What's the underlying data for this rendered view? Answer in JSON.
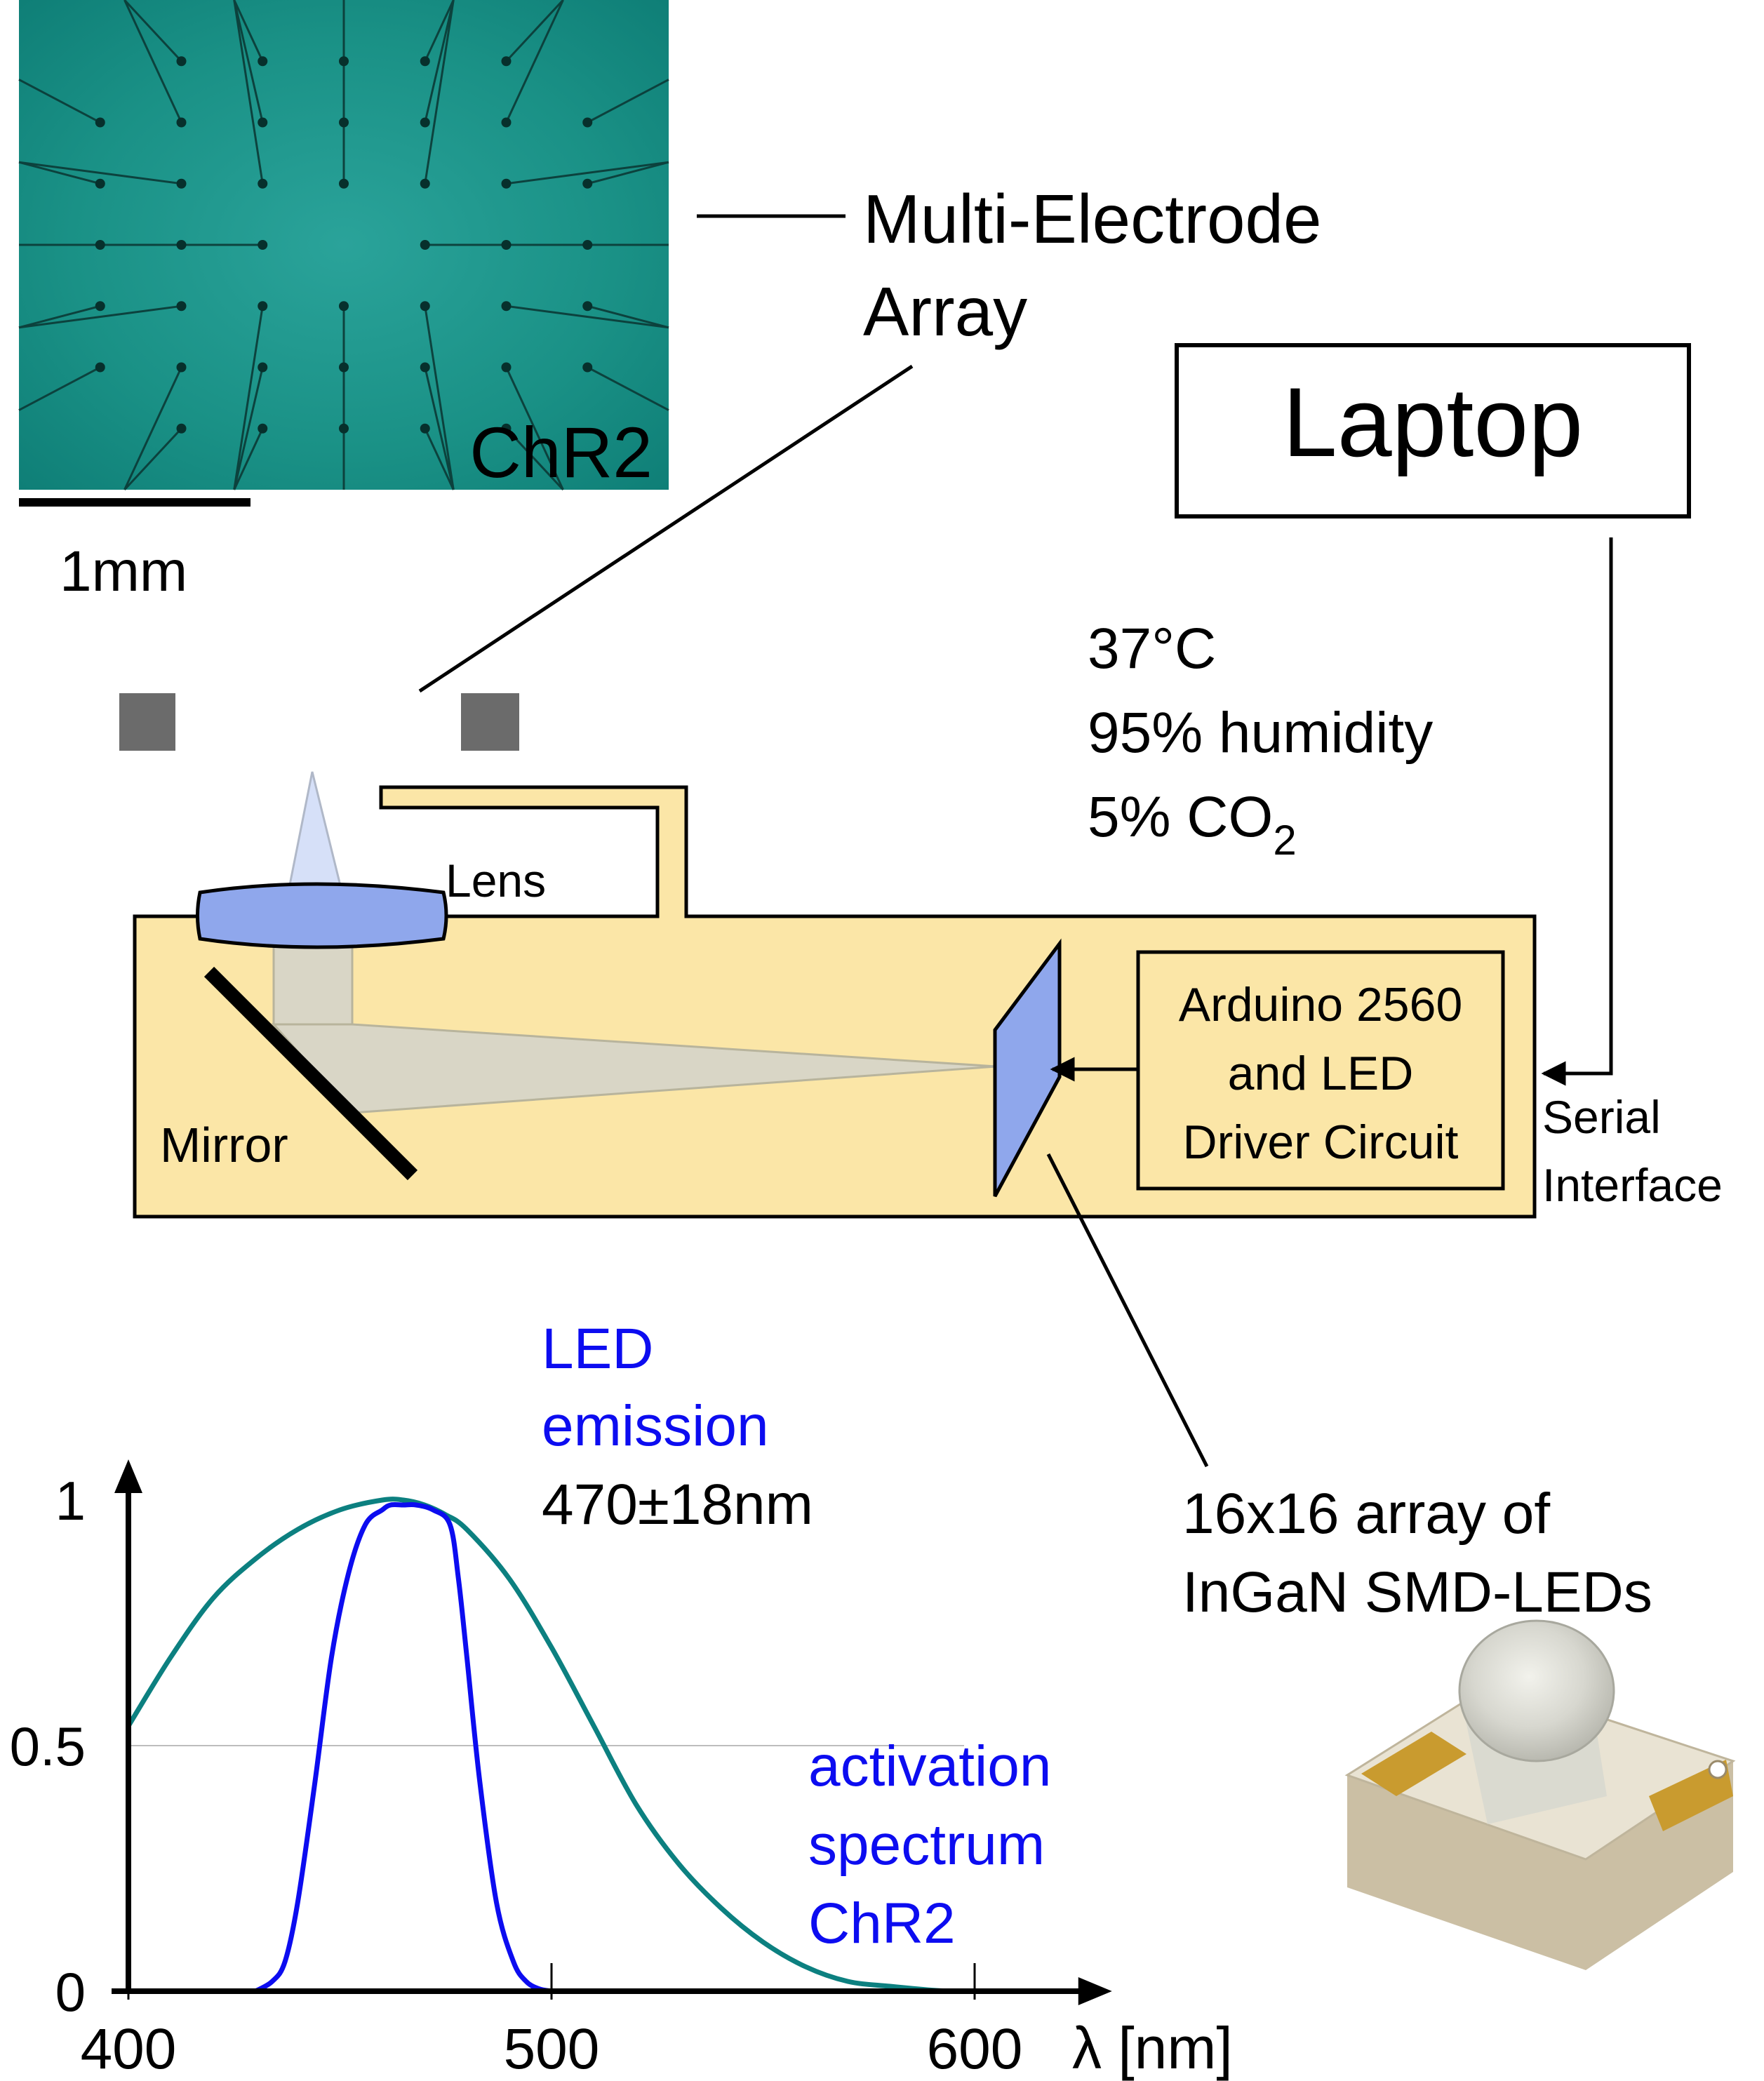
{
  "mea": {
    "label_line1": "Multi-Electrode",
    "label_line2": "Array",
    "overlay": "ChR2",
    "scalebar": "1mm"
  },
  "laptop": {
    "label": "Laptop"
  },
  "conditions": {
    "temperature": "37°C",
    "humidity": "95% humidity",
    "co2_prefix": "5% CO",
    "co2_subscript": "2"
  },
  "optics": {
    "lens": "Lens",
    "mirror": "Mirror"
  },
  "controller": {
    "line1": "Arduino 2560",
    "line2": "and LED",
    "line3": "Driver Circuit"
  },
  "serial": {
    "line1": "Serial",
    "line2": "Interface"
  },
  "led_array": {
    "line1": "16x16 array of",
    "line2": "InGaN SMD-LEDs"
  },
  "chart_data": {
    "type": "line",
    "xlabel": "λ [nm]",
    "xlim": [
      400,
      625
    ],
    "ylim": [
      0,
      1
    ],
    "x_ticks": [
      400,
      500,
      600
    ],
    "y_ticks": [
      0,
      0.5,
      1
    ],
    "y_tick_labels": [
      "0",
      "0.5",
      "1"
    ],
    "gridline_y": 0.5,
    "annotations": {
      "led_line1": "LED",
      "led_line2": "emission",
      "led_line3": "470±18nm",
      "act_line1": "activation",
      "act_line2": "spectrum",
      "act_line3": "ChR2"
    },
    "series": [
      {
        "name": "LED emission",
        "color": "#0c0cf0",
        "x": [
          430,
          434,
          437,
          440,
          444,
          448,
          452,
          456,
          460,
          462,
          465,
          468,
          472,
          476,
          478,
          480,
          483,
          487,
          491,
          494,
          497,
          500
        ],
        "y": [
          0,
          0.02,
          0.06,
          0.18,
          0.42,
          0.68,
          0.85,
          0.95,
          0.98,
          0.99,
          0.99,
          0.99,
          0.98,
          0.95,
          0.84,
          0.68,
          0.43,
          0.18,
          0.06,
          0.02,
          0.005,
          0
        ]
      },
      {
        "name": "activation spectrum ChR2",
        "color": "#0c8080",
        "x": [
          400,
          410,
          420,
          430,
          440,
          450,
          460,
          465,
          470,
          475,
          480,
          490,
          500,
          510,
          520,
          530,
          540,
          550,
          560,
          570,
          580,
          590,
          595
        ],
        "y": [
          0.54,
          0.68,
          0.8,
          0.88,
          0.94,
          0.98,
          1.0,
          1.0,
          0.99,
          0.97,
          0.94,
          0.84,
          0.7,
          0.54,
          0.38,
          0.26,
          0.17,
          0.1,
          0.05,
          0.02,
          0.01,
          0.002,
          0
        ]
      }
    ]
  }
}
